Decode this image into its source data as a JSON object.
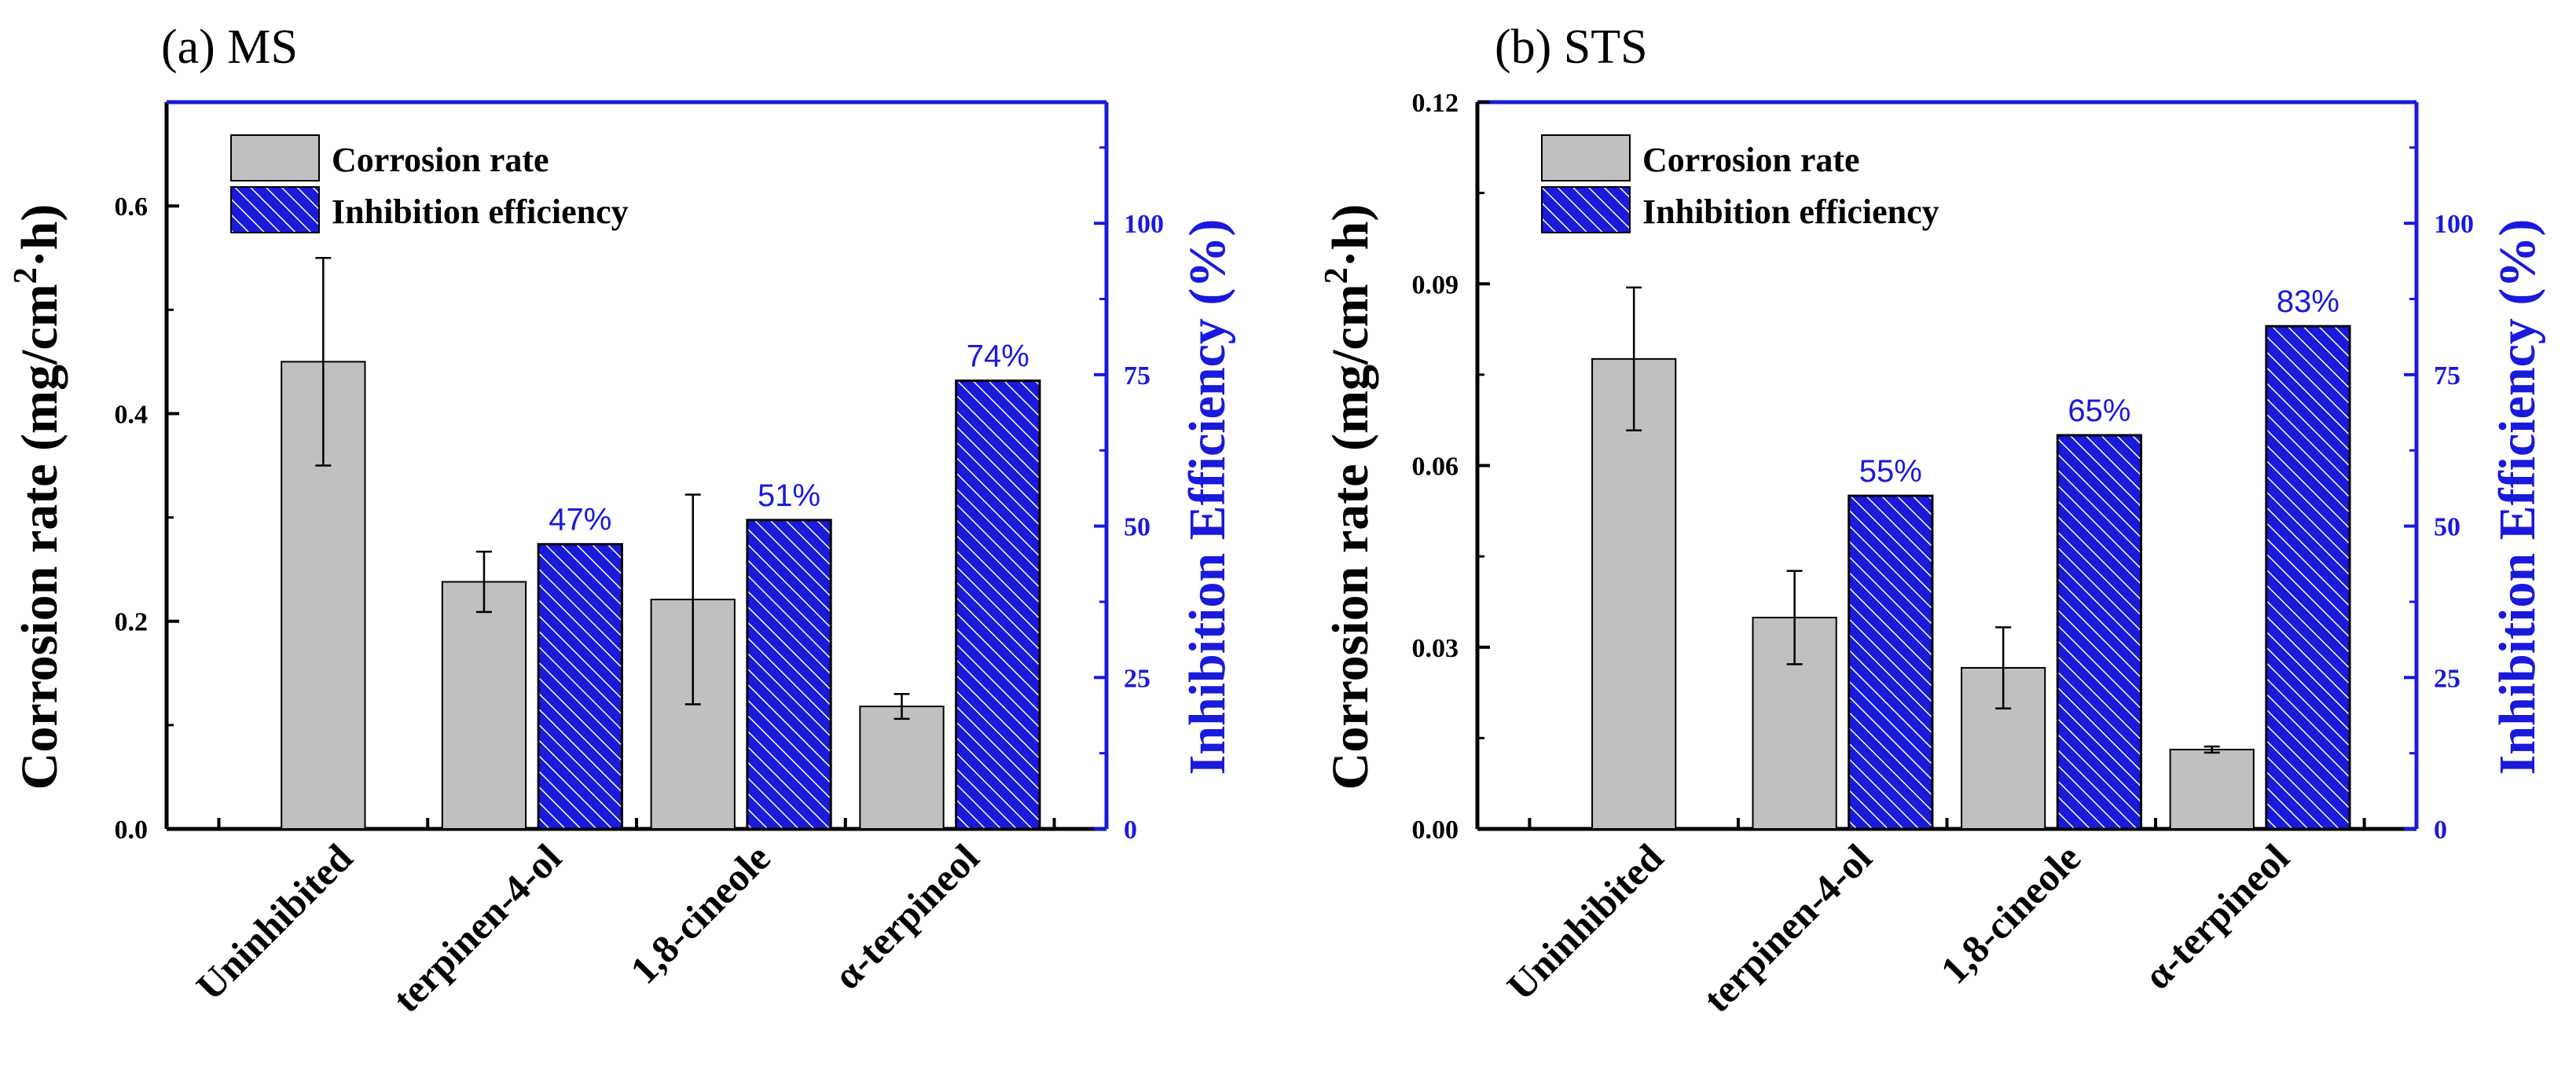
{
  "chart_data": [
    {
      "type": "bar",
      "title": "(a) MS",
      "categories": [
        "Uninhibited",
        "terpinen-4-ol",
        "1,8-cineole",
        "α-terpineol"
      ],
      "ylabel_left": {
        "main": "Corrosion rate (mg/cm",
        "sup": "2",
        "tail": "·h)"
      },
      "ylabel_right": "Inhibition Efficiency (%)",
      "ylim_left": [
        0,
        0.7
      ],
      "yticks_left": [
        0.0,
        0.2,
        0.4,
        0.6
      ],
      "ytick_labels_left": [
        "0.0",
        "0.2",
        "0.4",
        "0.6"
      ],
      "ylim_right": [
        0,
        120
      ],
      "yticks_right": [
        0,
        25,
        50,
        75,
        100
      ],
      "ytick_labels_right": [
        "0",
        "25",
        "50",
        "75",
        "100"
      ],
      "series": [
        {
          "name": "Corrosion rate",
          "axis": "left",
          "color": "#c0c0c0",
          "values": [
            0.45,
            0.238,
            0.221,
            0.118
          ],
          "errors": [
            0.1,
            0.029,
            0.101,
            0.012
          ]
        },
        {
          "name": "Inhibition efficiency",
          "axis": "right",
          "color": "#1a1adb",
          "pattern": "hatch",
          "values": [
            null,
            47,
            51,
            74
          ],
          "labels": [
            null,
            "47%",
            "51%",
            "74%"
          ]
        }
      ],
      "legend_position": "top-left"
    },
    {
      "type": "bar",
      "title": "(b) STS",
      "categories": [
        "Uninhibited",
        "terpinen-4-ol",
        "1,8-cineole",
        "α-terpineol"
      ],
      "ylabel_left": {
        "main": "Corrosion rate (mg/cm",
        "sup": "2",
        "tail": "·h)"
      },
      "ylabel_right": "Inhibition Efficiency (%)",
      "ylim_left": [
        0,
        0.12
      ],
      "yticks_left": [
        0.0,
        0.03,
        0.06,
        0.09,
        0.12
      ],
      "ytick_labels_left": [
        "0.00",
        "0.03",
        "0.06",
        "0.09",
        "0.12"
      ],
      "ylim_right": [
        0,
        120
      ],
      "yticks_right": [
        0,
        25,
        50,
        75,
        100
      ],
      "ytick_labels_right": [
        "0",
        "25",
        "50",
        "75",
        "100"
      ],
      "series": [
        {
          "name": "Corrosion rate",
          "axis": "left",
          "color": "#c0c0c0",
          "values": [
            0.0776,
            0.0349,
            0.0266,
            0.0131
          ],
          "errors": [
            0.0118,
            0.0077,
            0.0067,
            0.0005
          ]
        },
        {
          "name": "Inhibition efficiency",
          "axis": "right",
          "color": "#1a1adb",
          "pattern": "hatch",
          "values": [
            null,
            55,
            65,
            83
          ],
          "labels": [
            null,
            "55%",
            "65%",
            "83%"
          ]
        }
      ],
      "legend_position": "top-left"
    }
  ]
}
